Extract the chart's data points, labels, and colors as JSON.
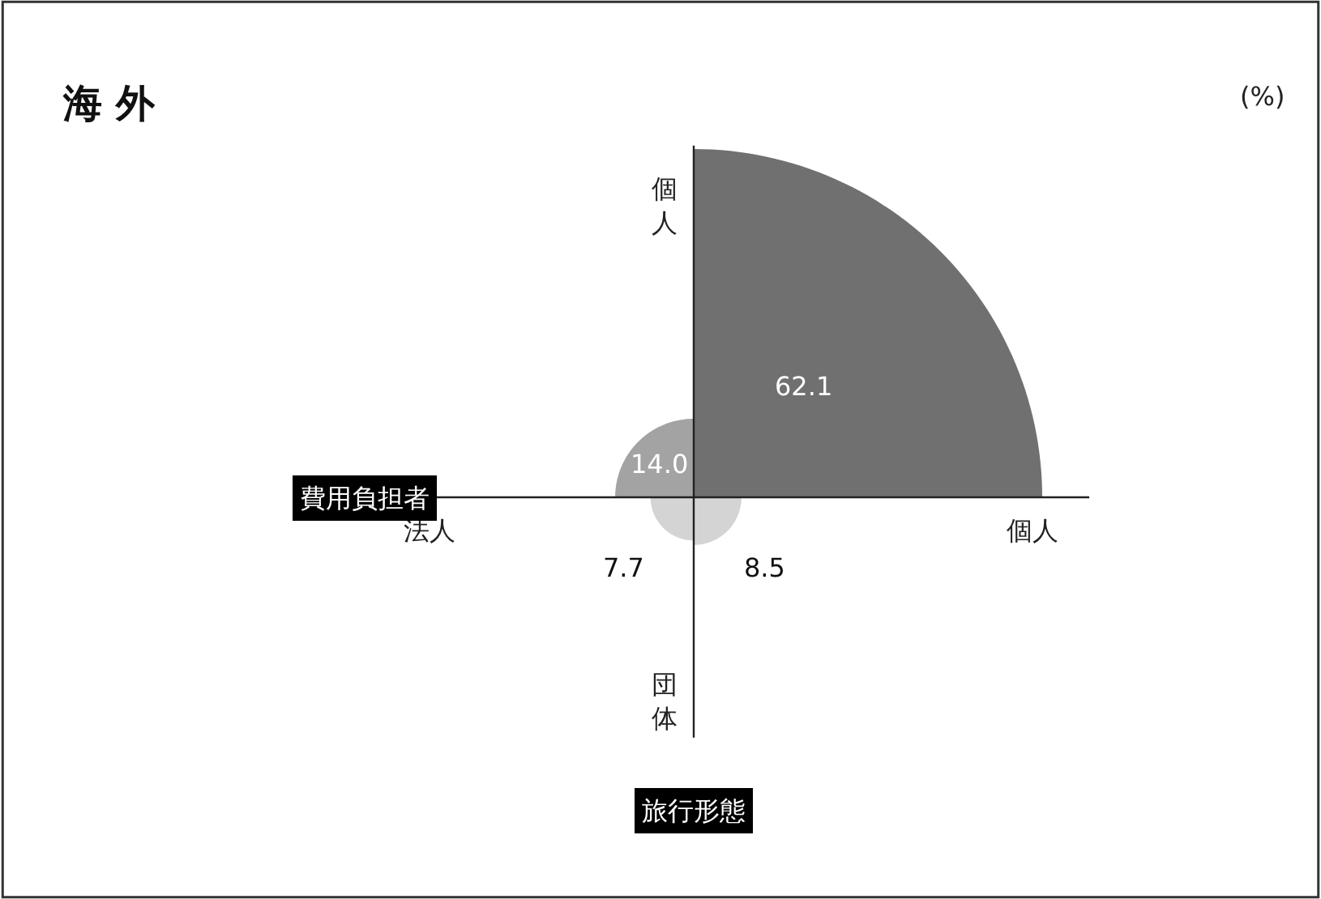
{
  "chart_data": {
    "type": "other",
    "title": "海 外",
    "xlabel": "費用負担者",
    "ylabel": "旅行形態",
    "categories": [
      null,
      null,
      null,
      null
    ],
    "values": [
      62.1,
      14.0,
      7.7,
      8.5
    ],
    "value_labels": [
      "62.1",
      "14.0",
      "7.7",
      "8.5"
    ],
    "colors": [
      "#707070",
      "#a3a3a3",
      "#d4d4d4",
      "#d4d4d4"
    ],
    "annotations": [
      "(%)",
      "個人",
      "法人",
      "団体",
      "個人"
    ]
  }
}
